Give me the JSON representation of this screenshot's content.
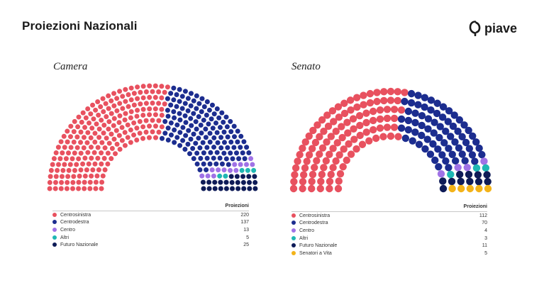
{
  "header": {
    "title": "Proiezioni Nazionali",
    "brand": "piave"
  },
  "colors": {
    "Centrosinistra": "#e8515f",
    "Centrodestra": "#1c2d8f",
    "Centro": "#a072e6",
    "Altri": "#1fb7b3",
    "Futuro Nazionale": "#0e1b57",
    "Senatori a Vita": "#f3b319"
  },
  "chart_data": [
    {
      "type": "parliament",
      "title": "Camera",
      "value_header": "Proiezioni",
      "series": [
        {
          "name": "Centrosinistra",
          "value": 220
        },
        {
          "name": "Centrodestra",
          "value": 137
        },
        {
          "name": "Centro",
          "value": 13
        },
        {
          "name": "Altri",
          "value": 5
        },
        {
          "name": "Futuro Nazionale",
          "value": 25
        }
      ]
    },
    {
      "type": "parliament",
      "title": "Senato",
      "value_header": "Proiezioni",
      "series": [
        {
          "name": "Centrosinistra",
          "value": 112
        },
        {
          "name": "Centrodestra",
          "value": 70
        },
        {
          "name": "Centro",
          "value": 4
        },
        {
          "name": "Altri",
          "value": 3
        },
        {
          "name": "Futuro Nazionale",
          "value": 11
        },
        {
          "name": "Senatori a Vita",
          "value": 5
        }
      ]
    }
  ]
}
